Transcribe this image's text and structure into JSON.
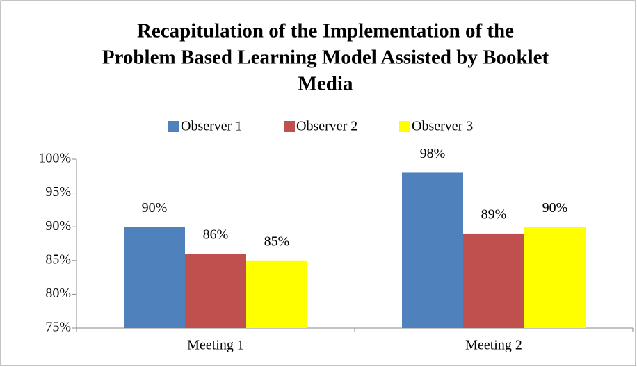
{
  "chart_data": {
    "type": "bar",
    "title": [
      "Recapitulation of the Implementation of the",
      "Problem Based Learning Model Assisted by Booklet",
      "Media"
    ],
    "categories": [
      "Meeting 1",
      "Meeting 2"
    ],
    "series": [
      {
        "name": "Observer 1",
        "color": "#4f81bd",
        "values": [
          90,
          98
        ],
        "value_labels": [
          "90%",
          "98%"
        ]
      },
      {
        "name": "Observer 2",
        "color": "#c0504d",
        "values": [
          86,
          89
        ],
        "value_labels": [
          "86%",
          "89%"
        ]
      },
      {
        "name": "Observer 3",
        "color": "#ffff00",
        "values": [
          85,
          90
        ],
        "value_labels": [
          "85%",
          "90%"
        ]
      }
    ],
    "ylim": [
      75,
      100
    ],
    "yticks": [
      {
        "value": 75,
        "label": "75%"
      },
      {
        "value": 80,
        "label": "80%"
      },
      {
        "value": 85,
        "label": "85%"
      },
      {
        "value": 90,
        "label": "90%"
      },
      {
        "value": 95,
        "label": "95%"
      },
      {
        "value": 100,
        "label": "100%"
      }
    ],
    "legend": "top",
    "grid": false
  }
}
